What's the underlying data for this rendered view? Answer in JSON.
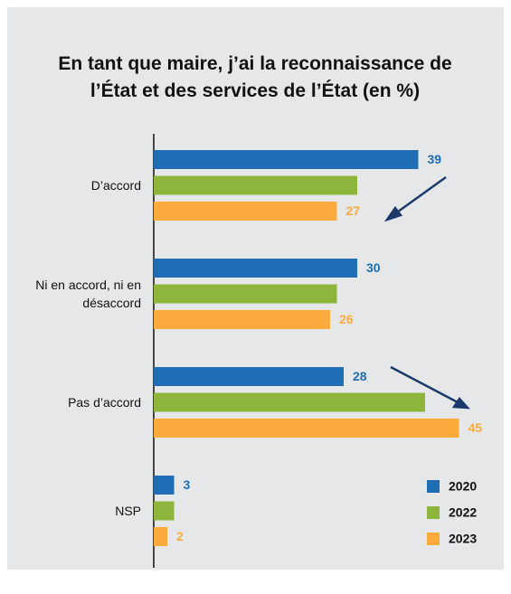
{
  "chart_data": {
    "type": "hbar",
    "title": "En tant que maire, j’ai la reconnaissance de l’État et des services de l’État (en %)",
    "categories": [
      "D’accord",
      "Ni en accord, ni en désaccord",
      "Pas d’accord",
      "NSP"
    ],
    "series": [
      {
        "name": "2020",
        "color": "#1f6db5",
        "values": [
          39,
          30,
          28,
          3
        ],
        "data_labels": true
      },
      {
        "name": "2022",
        "color": "#8db53c",
        "values": [
          30,
          27,
          40,
          3
        ],
        "data_labels": false
      },
      {
        "name": "2023",
        "color": "#f9ab3c",
        "values": [
          27,
          26,
          45,
          2
        ],
        "data_labels": true
      }
    ],
    "xlim": [
      0,
      52
    ],
    "legend": "lower right"
  }
}
